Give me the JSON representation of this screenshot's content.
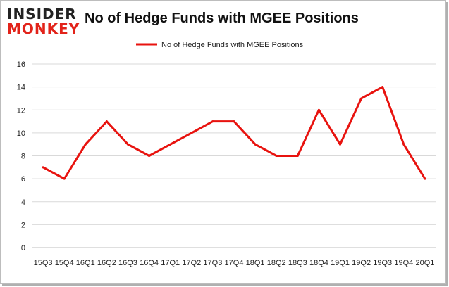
{
  "logo": {
    "line1": "INSIDER",
    "line2": "MONKEY"
  },
  "chart_data": {
    "type": "line",
    "title": "No of Hedge Funds with MGEE Positions",
    "categories": [
      "15Q3",
      "15Q4",
      "16Q1",
      "16Q2",
      "16Q3",
      "16Q4",
      "17Q1",
      "17Q2",
      "17Q3",
      "17Q4",
      "18Q1",
      "18Q2",
      "18Q3",
      "18Q4",
      "19Q1",
      "19Q2",
      "19Q3",
      "19Q4",
      "20Q1"
    ],
    "series": [
      {
        "name": "No of Hedge Funds with MGEE Positions",
        "color": "#e8130f",
        "values": [
          7,
          6,
          9,
          11,
          9,
          8,
          9,
          10,
          11,
          11,
          9,
          8,
          8,
          12,
          9,
          13,
          14,
          9,
          6
        ]
      }
    ],
    "ylim": [
      0,
      16
    ],
    "yticks": [
      0,
      2,
      4,
      6,
      8,
      10,
      12,
      14,
      16
    ],
    "grid": true,
    "legend": "top-center"
  }
}
